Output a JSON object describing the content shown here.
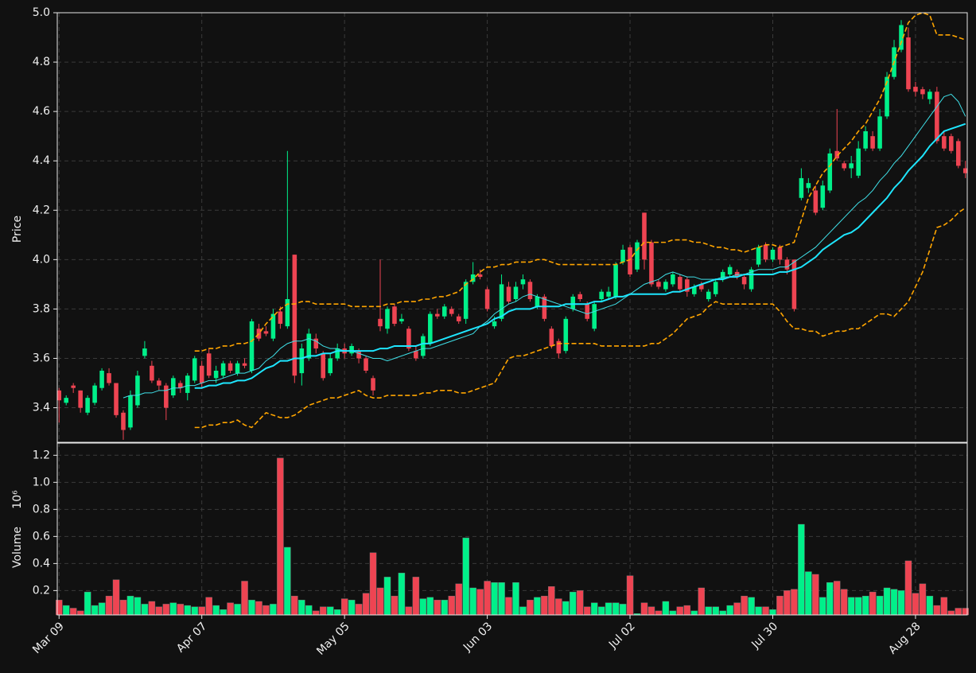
{
  "chart_data": {
    "type": "candlestick",
    "categories": [
      "Mar 09",
      null,
      null,
      null,
      null,
      null,
      null,
      null,
      null,
      null,
      null,
      null,
      null,
      null,
      null,
      null,
      null,
      null,
      null,
      null,
      "Apr 07",
      null,
      null,
      null,
      null,
      null,
      null,
      null,
      null,
      null,
      null,
      null,
      null,
      null,
      null,
      null,
      null,
      null,
      null,
      null,
      "May 05",
      null,
      null,
      null,
      null,
      null,
      null,
      null,
      null,
      null,
      null,
      null,
      null,
      null,
      null,
      null,
      null,
      null,
      null,
      null,
      "Jun 03",
      null,
      null,
      null,
      null,
      null,
      null,
      null,
      null,
      null,
      null,
      null,
      null,
      null,
      null,
      null,
      null,
      null,
      null,
      null,
      "Jul 02",
      null,
      null,
      null,
      null,
      null,
      null,
      null,
      null,
      null,
      null,
      null,
      null,
      null,
      null,
      null,
      null,
      null,
      null,
      null,
      "Jul 30",
      null,
      null,
      null,
      null,
      null,
      null,
      null,
      null,
      null,
      null,
      null,
      null,
      null,
      null,
      null,
      null,
      null,
      null,
      null,
      "Aug 28",
      null,
      null,
      null,
      null,
      null,
      null,
      null
    ],
    "open": [
      3.47,
      3.42,
      3.49,
      3.47,
      3.38,
      3.42,
      3.48,
      3.54,
      3.5,
      3.38,
      3.32,
      3.41,
      3.61,
      3.57,
      3.51,
      3.49,
      3.45,
      3.5,
      3.46,
      3.51,
      3.57,
      3.62,
      3.52,
      3.53,
      3.58,
      3.54,
      3.58,
      3.55,
      3.72,
      3.71,
      3.68,
      3.79,
      3.73,
      4.02,
      3.54,
      3.6,
      3.68,
      3.62,
      3.54,
      3.6,
      3.64,
      3.62,
      3.63,
      3.6,
      3.52,
      3.76,
      3.72,
      3.81,
      3.75,
      3.72,
      3.63,
      3.61,
      3.66,
      3.78,
      3.77,
      3.8,
      3.77,
      3.76,
      3.91,
      3.94,
      3.88,
      3.73,
      3.76,
      3.89,
      3.84,
      3.9,
      3.91,
      3.81,
      3.85,
      3.72,
      3.67,
      3.63,
      3.8,
      3.86,
      3.82,
      3.72,
      3.84,
      3.85,
      3.85,
      3.99,
      4.05,
      3.96,
      4.19,
      4.07,
      3.91,
      3.88,
      3.9,
      3.93,
      3.92,
      3.86,
      3.9,
      3.84,
      3.86,
      3.92,
      3.94,
      3.95,
      3.93,
      3.88,
      3.98,
      4.06,
      4.0,
      4.05,
      4.0,
      4.0,
      4.25,
      4.29,
      4.28,
      4.21,
      4.28,
      4.44,
      4.39,
      4.37,
      4.34,
      4.45,
      4.5,
      4.45,
      4.58,
      4.74,
      4.85,
      4.9,
      4.7,
      4.69,
      4.65,
      4.68,
      4.5,
      4.5,
      4.48,
      4.37
    ],
    "high": [
      3.48,
      3.45,
      3.5,
      3.47,
      3.45,
      3.5,
      3.56,
      3.56,
      3.5,
      3.39,
      3.47,
      3.55,
      3.67,
      3.59,
      3.52,
      3.5,
      3.53,
      3.51,
      3.54,
      3.61,
      3.59,
      3.64,
      3.57,
      3.59,
      3.59,
      3.59,
      3.6,
      3.76,
      3.74,
      3.73,
      3.8,
      3.81,
      4.44,
      4.02,
      3.66,
      3.72,
      3.7,
      3.63,
      3.62,
      3.66,
      3.66,
      3.66,
      3.64,
      3.61,
      3.53,
      4.0,
      3.81,
      3.82,
      3.78,
      3.73,
      3.65,
      3.7,
      3.79,
      3.8,
      3.82,
      3.81,
      3.78,
      3.92,
      3.99,
      3.96,
      3.89,
      3.77,
      3.94,
      3.91,
      3.91,
      3.94,
      3.92,
      3.86,
      3.86,
      3.73,
      3.68,
      3.77,
      3.86,
      3.87,
      3.83,
      3.83,
      3.88,
      3.89,
      3.99,
      4.06,
      4.06,
      4.08,
      4.19,
      4.08,
      3.92,
      3.92,
      3.95,
      3.94,
      3.93,
      3.9,
      3.91,
      3.88,
      3.92,
      3.96,
      3.98,
      3.96,
      3.94,
      3.97,
      4.06,
      4.07,
      4.05,
      4.06,
      4.01,
      4.0,
      4.37,
      4.33,
      4.3,
      4.32,
      4.45,
      4.61,
      4.4,
      4.42,
      4.48,
      4.54,
      4.52,
      4.61,
      4.76,
      4.89,
      4.97,
      4.94,
      4.72,
      4.7,
      4.69,
      4.7,
      4.52,
      4.51,
      4.49,
      4.4
    ],
    "low": [
      3.34,
      3.41,
      3.46,
      3.38,
      3.37,
      3.41,
      3.47,
      3.49,
      3.36,
      3.27,
      3.31,
      3.4,
      3.6,
      3.5,
      3.47,
      3.35,
      3.44,
      3.46,
      3.43,
      3.5,
      3.48,
      3.52,
      3.5,
      3.52,
      3.54,
      3.53,
      3.56,
      3.54,
      3.67,
      3.69,
      3.67,
      3.72,
      3.72,
      3.5,
      3.49,
      3.59,
      3.62,
      3.51,
      3.53,
      3.59,
      3.6,
      3.61,
      3.58,
      3.54,
      3.45,
      3.71,
      3.7,
      3.73,
      3.74,
      3.63,
      3.59,
      3.6,
      3.65,
      3.76,
      3.76,
      3.77,
      3.74,
      3.74,
      3.9,
      3.92,
      3.79,
      3.72,
      3.75,
      3.82,
      3.83,
      3.88,
      3.83,
      3.8,
      3.75,
      3.64,
      3.6,
      3.62,
      3.79,
      3.83,
      3.75,
      3.71,
      3.83,
      3.84,
      3.84,
      3.98,
      3.93,
      3.95,
      3.96,
      3.89,
      3.88,
      3.87,
      3.89,
      3.87,
      3.85,
      3.85,
      3.87,
      3.83,
      3.85,
      3.91,
      3.93,
      3.92,
      3.88,
      3.87,
      3.97,
      3.99,
      3.99,
      3.98,
      3.94,
      3.79,
      4.24,
      4.27,
      4.18,
      4.2,
      4.27,
      4.4,
      4.36,
      4.33,
      4.33,
      4.44,
      4.44,
      4.44,
      4.57,
      4.73,
      4.84,
      4.68,
      4.66,
      4.65,
      4.63,
      4.47,
      4.44,
      4.43,
      4.37,
      4.33
    ],
    "close": [
      3.43,
      3.44,
      3.48,
      3.4,
      3.44,
      3.49,
      3.55,
      3.5,
      3.37,
      3.31,
      3.45,
      3.53,
      3.64,
      3.51,
      3.49,
      3.4,
      3.52,
      3.48,
      3.53,
      3.6,
      3.5,
      3.53,
      3.55,
      3.58,
      3.55,
      3.58,
      3.57,
      3.75,
      3.68,
      3.7,
      3.78,
      3.74,
      3.84,
      3.53,
      3.64,
      3.7,
      3.64,
      3.52,
      3.6,
      3.64,
      3.62,
      3.65,
      3.6,
      3.55,
      3.47,
      3.73,
      3.8,
      3.74,
      3.76,
      3.64,
      3.6,
      3.69,
      3.78,
      3.77,
      3.81,
      3.78,
      3.75,
      3.91,
      3.94,
      3.93,
      3.8,
      3.75,
      3.9,
      3.83,
      3.89,
      3.92,
      3.84,
      3.85,
      3.76,
      3.65,
      3.62,
      3.76,
      3.85,
      3.84,
      3.76,
      3.82,
      3.87,
      3.87,
      3.98,
      4.04,
      3.94,
      4.07,
      4.0,
      3.9,
      3.89,
      3.91,
      3.94,
      3.88,
      3.87,
      3.89,
      3.88,
      3.87,
      3.91,
      3.95,
      3.97,
      3.93,
      3.9,
      3.96,
      4.05,
      4.0,
      4.04,
      4.0,
      3.96,
      3.8,
      4.33,
      4.31,
      4.19,
      4.3,
      4.43,
      4.41,
      4.37,
      4.39,
      4.45,
      4.52,
      4.45,
      4.58,
      4.74,
      4.86,
      4.95,
      4.69,
      4.68,
      4.67,
      4.68,
      4.48,
      4.45,
      4.44,
      4.38,
      4.35
    ],
    "volume": [
      0.13,
      0.09,
      0.07,
      0.05,
      0.19,
      0.09,
      0.11,
      0.16,
      0.28,
      0.13,
      0.16,
      0.15,
      0.1,
      0.12,
      0.08,
      0.1,
      0.11,
      0.1,
      0.09,
      0.08,
      0.08,
      0.15,
      0.09,
      0.06,
      0.11,
      0.1,
      0.27,
      0.13,
      0.12,
      0.09,
      0.1,
      1.18,
      0.52,
      0.16,
      0.13,
      0.09,
      0.05,
      0.08,
      0.08,
      0.06,
      0.14,
      0.13,
      0.1,
      0.18,
      0.48,
      0.22,
      0.3,
      0.16,
      0.33,
      0.08,
      0.3,
      0.14,
      0.15,
      0.13,
      0.13,
      0.16,
      0.25,
      0.59,
      0.22,
      0.21,
      0.27,
      0.26,
      0.26,
      0.15,
      0.26,
      0.08,
      0.13,
      0.15,
      0.16,
      0.23,
      0.14,
      0.12,
      0.19,
      0.2,
      0.08,
      0.11,
      0.08,
      0.11,
      0.11,
      0.1,
      0.31,
      0.03,
      0.11,
      0.08,
      0.05,
      0.12,
      0.05,
      0.08,
      0.09,
      0.05,
      0.22,
      0.08,
      0.08,
      0.05,
      0.09,
      0.11,
      0.16,
      0.15,
      0.08,
      0.08,
      0.06,
      0.16,
      0.2,
      0.21,
      0.69,
      0.34,
      0.32,
      0.15,
      0.26,
      0.27,
      0.21,
      0.15,
      0.15,
      0.16,
      0.19,
      0.16,
      0.22,
      0.21,
      0.2,
      0.42,
      0.18,
      0.25,
      0.16,
      0.09,
      0.15,
      0.05,
      0.07,
      0.07
    ],
    "up_color": "#00f08a",
    "down_color": "#ee4452",
    "lines": [
      {
        "color": "#3fe0e8",
        "width": 1,
        "values": [
          null,
          null,
          null,
          null,
          null,
          null,
          null,
          null,
          null,
          3.44,
          3.45,
          3.45,
          3.46,
          3.46,
          3.47,
          3.47,
          3.48,
          3.48,
          3.49,
          3.49,
          3.5,
          3.51,
          3.51,
          3.52,
          3.53,
          3.54,
          3.54,
          3.55,
          3.56,
          3.59,
          3.61,
          3.64,
          3.66,
          3.67,
          3.67,
          3.68,
          3.67,
          3.65,
          3.64,
          3.64,
          3.63,
          3.63,
          3.62,
          3.61,
          3.6,
          3.6,
          3.59,
          3.6,
          3.61,
          3.62,
          3.63,
          3.64,
          3.64,
          3.65,
          3.66,
          3.67,
          3.68,
          3.69,
          3.7,
          3.73,
          3.75,
          3.78,
          3.8,
          3.82,
          3.83,
          3.85,
          3.86,
          3.85,
          3.84,
          3.83,
          3.82,
          3.81,
          3.8,
          3.79,
          3.78,
          3.79,
          3.8,
          3.81,
          3.82,
          3.84,
          3.86,
          3.88,
          3.9,
          3.91,
          3.92,
          3.94,
          3.95,
          3.94,
          3.93,
          3.93,
          3.92,
          3.92,
          3.92,
          3.93,
          3.93,
          3.94,
          3.94,
          3.95,
          3.96,
          3.96,
          3.96,
          3.97,
          3.97,
          3.99,
          4.01,
          4.03,
          4.05,
          4.08,
          4.11,
          4.14,
          4.17,
          4.2,
          4.23,
          4.25,
          4.28,
          4.32,
          4.35,
          4.39,
          4.42,
          4.46,
          4.5,
          4.54,
          4.58,
          4.62,
          4.66,
          4.67,
          4.64,
          4.58
        ]
      },
      {
        "color": "#1ee6ff",
        "width": 2,
        "values": [
          null,
          null,
          null,
          null,
          null,
          null,
          null,
          null,
          null,
          null,
          null,
          null,
          null,
          null,
          null,
          null,
          null,
          null,
          null,
          3.48,
          3.48,
          3.49,
          3.49,
          3.5,
          3.5,
          3.51,
          3.51,
          3.52,
          3.54,
          3.56,
          3.57,
          3.59,
          3.59,
          3.6,
          3.6,
          3.61,
          3.61,
          3.62,
          3.62,
          3.63,
          3.63,
          3.63,
          3.63,
          3.63,
          3.63,
          3.64,
          3.64,
          3.65,
          3.65,
          3.65,
          3.65,
          3.66,
          3.66,
          3.67,
          3.68,
          3.69,
          3.7,
          3.71,
          3.72,
          3.73,
          3.74,
          3.76,
          3.77,
          3.79,
          3.8,
          3.8,
          3.8,
          3.81,
          3.81,
          3.81,
          3.81,
          3.82,
          3.82,
          3.82,
          3.82,
          3.83,
          3.83,
          3.84,
          3.85,
          3.85,
          3.86,
          3.86,
          3.86,
          3.86,
          3.86,
          3.86,
          3.87,
          3.87,
          3.88,
          3.89,
          3.9,
          3.91,
          3.92,
          3.92,
          3.93,
          3.93,
          3.94,
          3.94,
          3.94,
          3.94,
          3.94,
          3.95,
          3.95,
          3.96,
          3.97,
          3.99,
          4.01,
          4.04,
          4.06,
          4.08,
          4.1,
          4.11,
          4.13,
          4.16,
          4.19,
          4.22,
          4.25,
          4.29,
          4.32,
          4.36,
          4.39,
          4.42,
          4.46,
          4.49,
          4.52,
          4.53,
          4.54,
          4.55
        ]
      },
      {
        "color": "#ffa500",
        "width": 1.6,
        "dash": "6 3",
        "values": [
          null,
          null,
          null,
          null,
          null,
          null,
          null,
          null,
          null,
          null,
          null,
          null,
          null,
          null,
          null,
          null,
          null,
          null,
          null,
          3.63,
          3.63,
          3.64,
          3.64,
          3.65,
          3.65,
          3.66,
          3.66,
          3.67,
          3.7,
          3.74,
          3.77,
          3.8,
          3.82,
          3.82,
          3.83,
          3.83,
          3.82,
          3.82,
          3.82,
          3.82,
          3.82,
          3.81,
          3.81,
          3.81,
          3.81,
          3.81,
          3.82,
          3.82,
          3.83,
          3.83,
          3.83,
          3.84,
          3.84,
          3.85,
          3.85,
          3.86,
          3.87,
          3.9,
          3.92,
          3.95,
          3.97,
          3.97,
          3.98,
          3.98,
          3.99,
          3.99,
          3.99,
          4.0,
          4.0,
          3.99,
          3.98,
          3.98,
          3.98,
          3.98,
          3.98,
          3.98,
          3.98,
          3.98,
          3.98,
          3.99,
          4.0,
          4.04,
          4.07,
          4.07,
          4.07,
          4.07,
          4.08,
          4.08,
          4.08,
          4.07,
          4.07,
          4.06,
          4.05,
          4.05,
          4.04,
          4.04,
          4.03,
          4.04,
          4.05,
          4.06,
          4.06,
          4.05,
          4.06,
          4.07,
          4.16,
          4.25,
          4.3,
          4.35,
          4.38,
          4.42,
          4.45,
          4.48,
          4.52,
          4.55,
          4.6,
          4.65,
          4.72,
          4.8,
          4.88,
          4.96,
          4.99,
          5.0,
          4.99,
          4.91,
          4.91,
          4.91,
          4.9,
          4.89
        ]
      },
      {
        "color": "#ffa500",
        "width": 1.6,
        "dash": "6 3",
        "values": [
          null,
          null,
          null,
          null,
          null,
          null,
          null,
          null,
          null,
          null,
          null,
          null,
          null,
          null,
          null,
          null,
          null,
          null,
          null,
          3.32,
          3.32,
          3.33,
          3.33,
          3.34,
          3.34,
          3.35,
          3.33,
          3.32,
          3.35,
          3.38,
          3.37,
          3.36,
          3.36,
          3.37,
          3.39,
          3.41,
          3.42,
          3.43,
          3.44,
          3.44,
          3.45,
          3.46,
          3.47,
          3.45,
          3.44,
          3.44,
          3.45,
          3.45,
          3.45,
          3.45,
          3.45,
          3.46,
          3.46,
          3.47,
          3.47,
          3.47,
          3.46,
          3.46,
          3.47,
          3.48,
          3.49,
          3.5,
          3.55,
          3.6,
          3.61,
          3.61,
          3.62,
          3.63,
          3.64,
          3.65,
          3.66,
          3.66,
          3.66,
          3.66,
          3.66,
          3.66,
          3.65,
          3.65,
          3.65,
          3.65,
          3.65,
          3.65,
          3.65,
          3.66,
          3.66,
          3.68,
          3.7,
          3.73,
          3.76,
          3.77,
          3.78,
          3.81,
          3.83,
          3.82,
          3.82,
          3.82,
          3.82,
          3.82,
          3.82,
          3.82,
          3.82,
          3.79,
          3.75,
          3.72,
          3.72,
          3.71,
          3.71,
          3.69,
          3.7,
          3.71,
          3.71,
          3.72,
          3.72,
          3.74,
          3.76,
          3.78,
          3.78,
          3.77,
          3.8,
          3.83,
          3.89,
          3.95,
          4.04,
          4.13,
          4.14,
          4.16,
          4.19,
          4.21
        ]
      }
    ],
    "y_label": "Price",
    "ylim": [
      3.26,
      5.0
    ],
    "yticks": [
      3.4,
      3.6,
      3.8,
      {
        "value": 4.0,
        "label": "4.0"
      },
      4.2,
      4.4,
      4.6,
      4.8,
      {
        "value": 5.0,
        "label": "5.0"
      }
    ],
    "volume_label": "Volume",
    "volume_offset": "10⁶",
    "volume_ylim": [
      0.02,
      1.29
    ],
    "volume_yticks": [
      0.2,
      0.4,
      0.6,
      0.8,
      {
        "value": 1.0,
        "label": "1.0"
      },
      1.2
    ],
    "grid": true
  }
}
